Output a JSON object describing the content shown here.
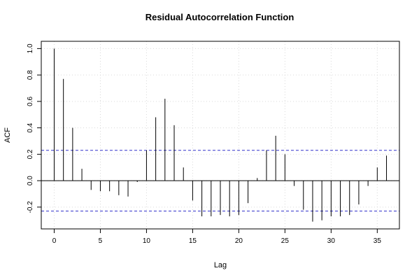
{
  "chart_data": {
    "type": "bar",
    "title": "Residual Autocorrelation Function",
    "xlabel": "Lag",
    "ylabel": "ACF",
    "xlim": [
      -1.4,
      37.4
    ],
    "ylim": [
      -0.365,
      1.055
    ],
    "x_ticks": [
      0,
      5,
      10,
      15,
      20,
      25,
      30,
      35
    ],
    "y_ticks": [
      -0.2,
      0.0,
      0.2,
      0.4,
      0.6,
      0.8,
      1.0
    ],
    "x_tick_labels": [
      "0",
      "5",
      "10",
      "15",
      "20",
      "25",
      "30",
      "35"
    ],
    "y_tick_labels": [
      "-0.2",
      "0.0",
      "0.2",
      "0.4",
      "0.6",
      "0.8",
      "1.0"
    ],
    "grid": true,
    "confidence_band": [
      0.23,
      -0.23
    ],
    "confidence_color": "#3333cc",
    "lags": [
      0,
      1,
      2,
      3,
      4,
      5,
      6,
      7,
      8,
      9,
      10,
      11,
      12,
      13,
      14,
      15,
      16,
      17,
      18,
      19,
      20,
      21,
      22,
      23,
      24,
      25,
      26,
      27,
      28,
      29,
      30,
      31,
      32,
      33,
      34,
      35,
      36
    ],
    "values": [
      1.0,
      0.77,
      0.4,
      0.09,
      -0.07,
      -0.08,
      -0.08,
      -0.11,
      -0.12,
      -0.01,
      0.23,
      0.48,
      0.62,
      0.42,
      0.1,
      -0.15,
      -0.27,
      -0.27,
      -0.26,
      -0.27,
      -0.26,
      -0.17,
      0.02,
      0.23,
      0.34,
      0.2,
      -0.04,
      -0.22,
      -0.31,
      -0.3,
      -0.27,
      -0.27,
      -0.26,
      -0.18,
      -0.04,
      0.1,
      0.19
    ]
  }
}
